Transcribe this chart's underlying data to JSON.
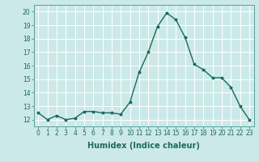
{
  "x": [
    0,
    1,
    2,
    3,
    4,
    5,
    6,
    7,
    8,
    9,
    10,
    11,
    12,
    13,
    14,
    15,
    16,
    17,
    18,
    19,
    20,
    21,
    22,
    23
  ],
  "y": [
    12.5,
    12.0,
    12.3,
    12.0,
    12.1,
    12.6,
    12.6,
    12.5,
    12.5,
    12.4,
    13.3,
    15.5,
    17.0,
    18.9,
    19.9,
    19.4,
    18.1,
    16.1,
    15.7,
    15.1,
    15.1,
    14.4,
    13.0,
    12.0
  ],
  "line_color": "#1a6b5a",
  "marker": "o",
  "marker_size": 1.8,
  "linewidth": 1.0,
  "xlabel": "Humidex (Indice chaleur)",
  "ylabel": "",
  "xlim": [
    -0.5,
    23.5
  ],
  "ylim": [
    11.5,
    20.5
  ],
  "yticks": [
    12,
    13,
    14,
    15,
    16,
    17,
    18,
    19,
    20
  ],
  "xticks": [
    0,
    1,
    2,
    3,
    4,
    5,
    6,
    7,
    8,
    9,
    10,
    11,
    12,
    13,
    14,
    15,
    16,
    17,
    18,
    19,
    20,
    21,
    22,
    23
  ],
  "xtick_labels": [
    "0",
    "1",
    "2",
    "3",
    "4",
    "5",
    "6",
    "7",
    "8",
    "9",
    "10",
    "11",
    "12",
    "13",
    "14",
    "15",
    "16",
    "17",
    "18",
    "19",
    "20",
    "21",
    "22",
    "23"
  ],
  "background_color": "#cce9e9",
  "grid_color": "#ffffff",
  "tick_fontsize": 5.5,
  "xlabel_fontsize": 7.0
}
